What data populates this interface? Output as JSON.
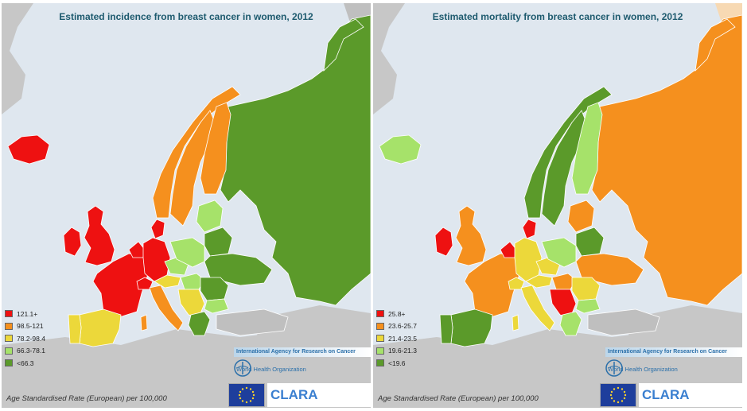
{
  "colors": {
    "red": "#ee1111",
    "orange": "#f5901e",
    "yellow": "#ecd83a",
    "lightgreen": "#a6e26a",
    "green": "#5b9a2a",
    "sea": "#dfe7ef",
    "land": "#c7c7c7",
    "nodata": "#bfbfbf",
    "title": "#1d5a6e"
  },
  "panels": [
    {
      "title": "Estimated incidence from breast cancer in women, 2012",
      "legend": [
        {
          "label": "121.1+",
          "color": "#ee1111"
        },
        {
          "label": "98.5-121",
          "color": "#f5901e"
        },
        {
          "label": "78.2-98.4",
          "color": "#ecd83a"
        },
        {
          "label": "66.3-78.1",
          "color": "#a6e26a"
        },
        {
          "label": "<66.3",
          "color": "#5b9a2a"
        }
      ],
      "caption": "Age Standardised Rate (European) per 100,000",
      "iarc": "International Agency for Research on Cancer",
      "who": "World Health Organization",
      "clara": "CLARA"
    },
    {
      "title": "Estimated mortality from breast cancer in women, 2012",
      "legend": [
        {
          "label": "25.8+",
          "color": "#ee1111"
        },
        {
          "label": "23.6-25.7",
          "color": "#f5901e"
        },
        {
          "label": "21.4-23.5",
          "color": "#ecd83a"
        },
        {
          "label": "19.6-21.3",
          "color": "#a6e26a"
        },
        {
          "label": "<19.6",
          "color": "#5b9a2a"
        }
      ],
      "caption": "Age Standardised Rate (European) per 100,000",
      "iarc": "International Agency for Research on Cancer",
      "who": "World Health Organization",
      "clara": "CLARA"
    }
  ],
  "regions": {
    "incidence": {
      "iceland": "red",
      "norway": "orange",
      "sweden": "orange",
      "finland": "orange",
      "denmark": "red",
      "uk": "red",
      "ireland": "red",
      "france": "red",
      "benelux": "red",
      "germany": "red",
      "switzerland": "red",
      "italy": "orange",
      "spain": "yellow",
      "portugal": "yellow",
      "austria": "yellow",
      "czech": "lightgreen",
      "poland": "lightgreen",
      "baltics": "lightgreen",
      "belarus": "green",
      "ukraine": "green",
      "russia": "green",
      "kola": "green",
      "hungary": "lightgreen",
      "romania": "green",
      "balkans": "yellow",
      "bulgaria": "lightgreen",
      "greece": "green",
      "turkey": "nodata",
      "sardinia": "orange"
    },
    "mortality": {
      "iceland": "lightgreen",
      "norway": "green",
      "sweden": "green",
      "finland": "lightgreen",
      "denmark": "red",
      "uk": "orange",
      "ireland": "red",
      "france": "orange",
      "benelux": "red",
      "germany": "yellow",
      "switzerland": "yellow",
      "italy": "yellow",
      "spain": "green",
      "portugal": "green",
      "austria": "yellow",
      "czech": "yellow",
      "poland": "lightgreen",
      "baltics": "orange",
      "belarus": "green",
      "ukraine": "orange",
      "russia": "orange",
      "kola": "orange",
      "hungary": "orange",
      "romania": "yellow",
      "balkans": "red",
      "bulgaria": "lightgreen",
      "greece": "lightgreen",
      "turkey": "nodata",
      "sardinia": "yellow"
    }
  }
}
